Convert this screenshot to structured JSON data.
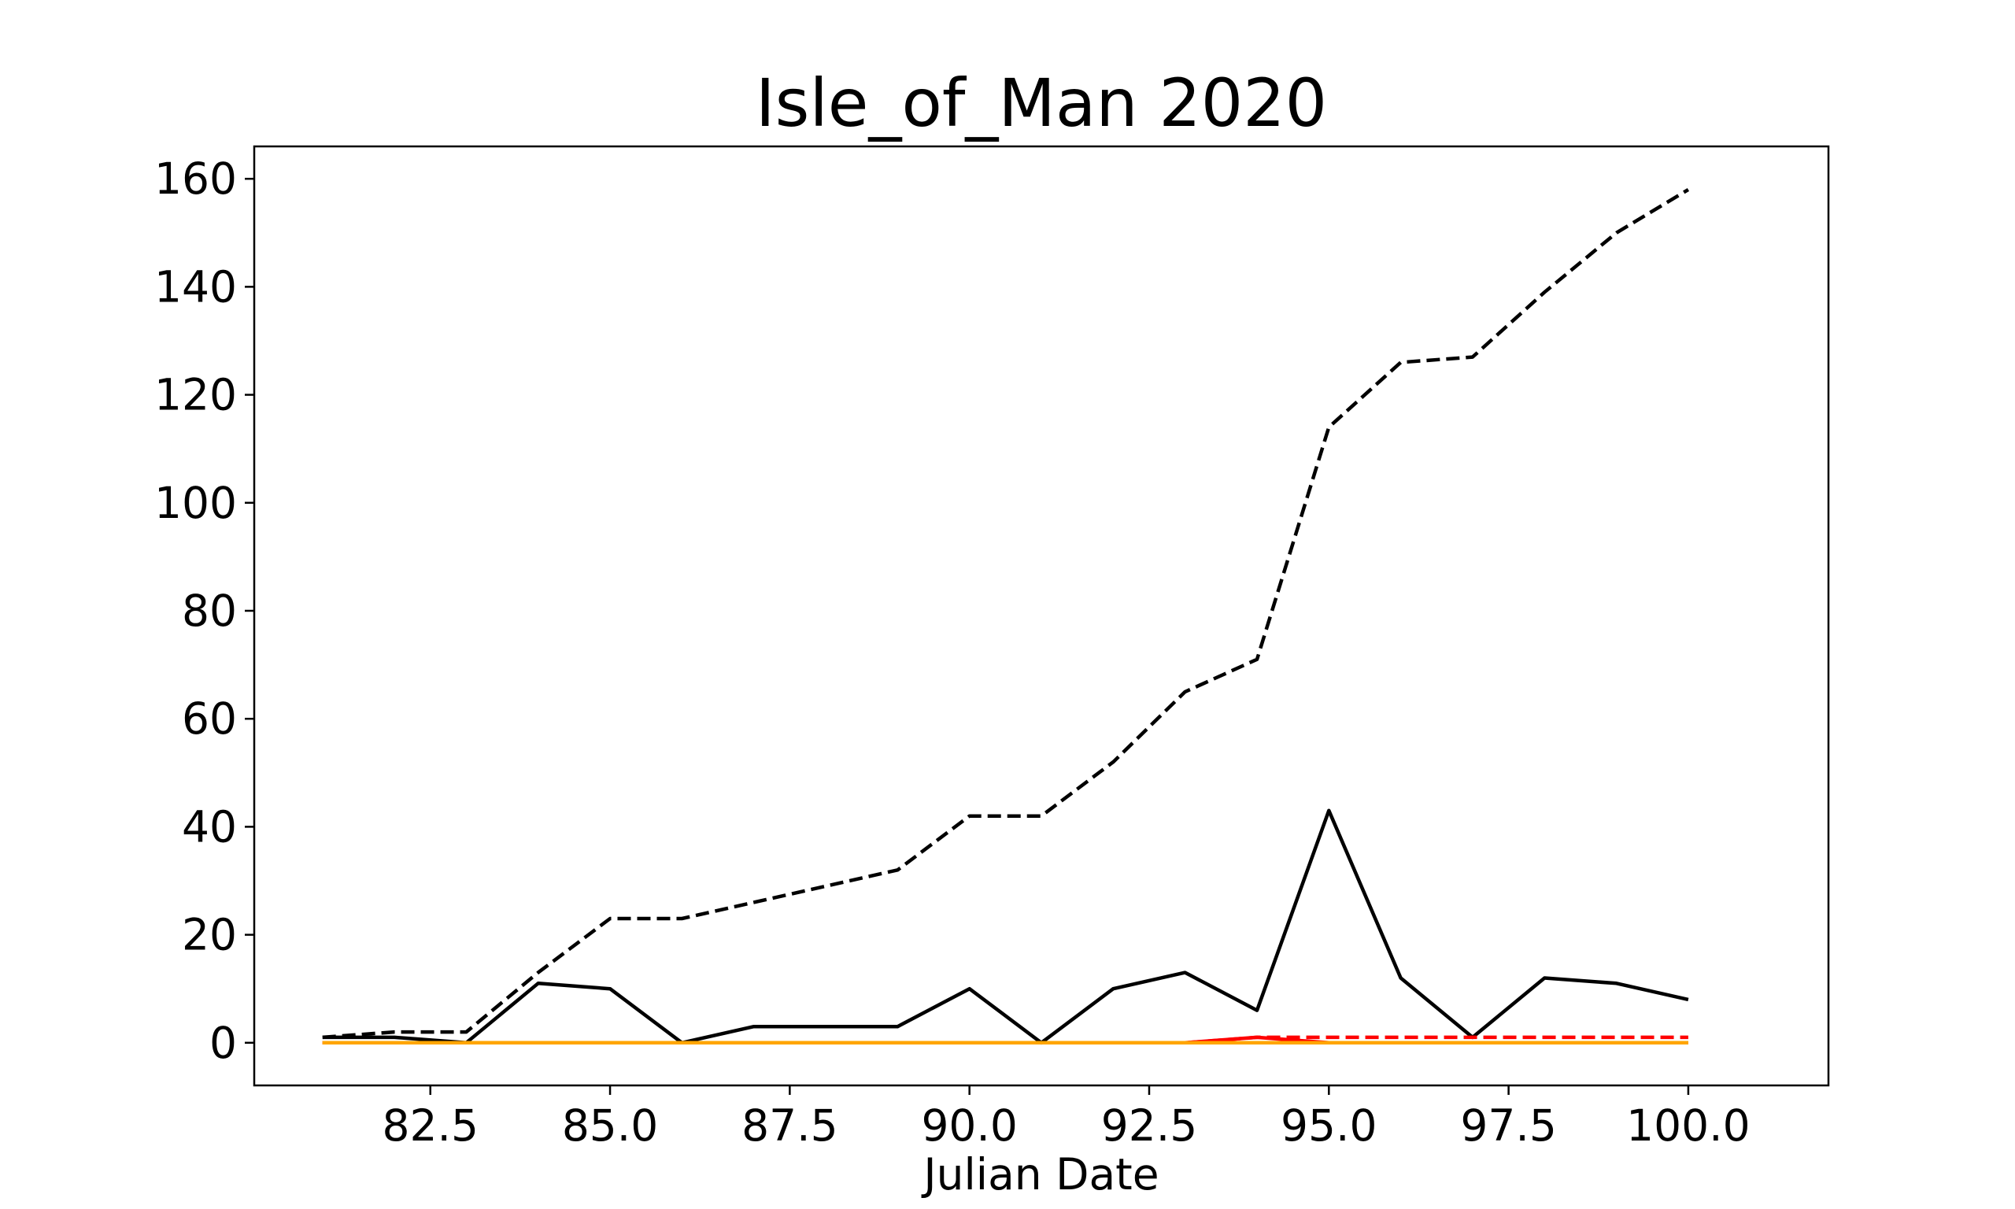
{
  "chart_data": {
    "type": "line",
    "title": "Isle_of_Man 2020",
    "xlabel": "Julian Date",
    "ylabel": "",
    "xlim": [
      80.05,
      101.95
    ],
    "ylim": [
      -7.9,
      166.0
    ],
    "x_ticks": [
      82.5,
      85.0,
      87.5,
      90.0,
      92.5,
      95.0,
      97.5,
      100.0
    ],
    "x_tick_labels": [
      "82.5",
      "85.0",
      "87.5",
      "90.0",
      "92.5",
      "95.0",
      "97.5",
      "100.0"
    ],
    "y_ticks": [
      0,
      20,
      40,
      60,
      80,
      100,
      120,
      140,
      160
    ],
    "y_tick_labels": [
      "0",
      "20",
      "40",
      "60",
      "80",
      "100",
      "120",
      "140",
      "160"
    ],
    "grid": false,
    "x": [
      81,
      82,
      83,
      84,
      85,
      86,
      87,
      88,
      89,
      90,
      91,
      92,
      93,
      94,
      95,
      96,
      97,
      98,
      99,
      100
    ],
    "series": [
      {
        "color": "#000000",
        "style": "dashed",
        "values": [
          1,
          2,
          2,
          13,
          23,
          23,
          26,
          29,
          32,
          42,
          42,
          52,
          65,
          71,
          114,
          126,
          127,
          139,
          150,
          158
        ]
      },
      {
        "color": "#000000",
        "style": "solid",
        "values": [
          1,
          1,
          0,
          11,
          10,
          0,
          3,
          3,
          3,
          10,
          0,
          10,
          13,
          6,
          43,
          12,
          1,
          12,
          11,
          8
        ]
      },
      {
        "color": "#ff0000",
        "style": "dashed",
        "values": [
          0,
          0,
          0,
          0,
          0,
          0,
          0,
          0,
          0,
          0,
          0,
          0,
          0,
          1,
          1,
          1,
          1,
          1,
          1,
          1
        ]
      },
      {
        "color": "#ff0000",
        "style": "solid",
        "values": [
          0,
          0,
          0,
          0,
          0,
          0,
          0,
          0,
          0,
          0,
          0,
          0,
          0,
          1,
          0,
          0,
          0,
          0,
          0,
          0
        ]
      },
      {
        "color": "#ffa500",
        "style": "dashed",
        "values": [
          0,
          0,
          0,
          0,
          0,
          0,
          0,
          0,
          0,
          0,
          0,
          0,
          0,
          0,
          0,
          0,
          0,
          0,
          0,
          0
        ]
      },
      {
        "color": "#ffa500",
        "style": "solid",
        "values": [
          0,
          0,
          0,
          0,
          0,
          0,
          0,
          0,
          0,
          0,
          0,
          0,
          0,
          0,
          0,
          0,
          0,
          0,
          0,
          0
        ]
      }
    ]
  }
}
